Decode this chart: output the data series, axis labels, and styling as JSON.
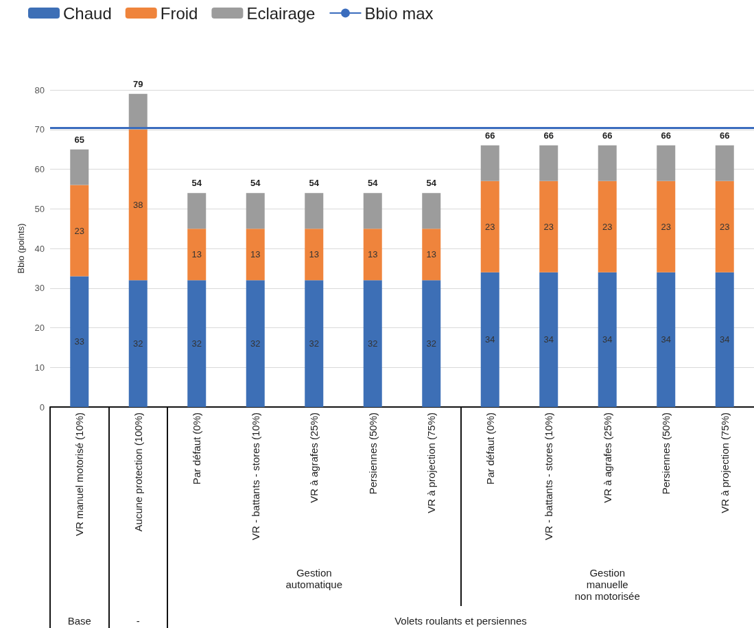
{
  "chart_data": {
    "type": "bar",
    "stacked": true,
    "ylabel": "Bbio (points)",
    "categories": [
      "VR manuel motorisé (10%)",
      "Aucune protection (100%)",
      "Par défaut (0%)",
      "VR - battants - stores (10%)",
      "VR à agrafes (25%)",
      "Persiennes (50%)",
      "VR à projection (75%)",
      "Par défaut (0%)",
      "VR - battants - stores (10%)",
      "VR à agrafes (25%)",
      "Persiennes (50%)",
      "VR à projection (75%)"
    ],
    "series": [
      {
        "name": "Chaud",
        "color": "#3d6fb6",
        "values": [
          33,
          32,
          32,
          32,
          32,
          32,
          32,
          34,
          34,
          34,
          34,
          34
        ],
        "value_labels": [
          "33",
          "32",
          "32",
          "32",
          "32",
          "32",
          "32",
          "34",
          "34",
          "34",
          "34",
          "34"
        ]
      },
      {
        "name": "Froid",
        "color": "#ef843c",
        "values": [
          23,
          38,
          13,
          13,
          13,
          13,
          13,
          23,
          23,
          23,
          23,
          23
        ],
        "value_labels": [
          "23",
          "38",
          "13",
          "13",
          "13",
          "13",
          "13",
          "23",
          "23",
          "23",
          "23",
          "23"
        ]
      },
      {
        "name": "Eclairage",
        "color": "#9c9c9c",
        "values": [
          9,
          9,
          9,
          9,
          9,
          9,
          9,
          9,
          9,
          9,
          9,
          9
        ]
      }
    ],
    "totals": [
      "65",
      "79",
      "54",
      "54",
      "54",
      "54",
      "54",
      "66",
      "66",
      "66",
      "66",
      "66"
    ],
    "ref_lines": [
      {
        "axis": "y",
        "value": 70.5,
        "label": "Bbio max",
        "color": "#3a6cbd"
      }
    ],
    "ylim": [
      0,
      80
    ],
    "yticks": [
      0,
      10,
      20,
      30,
      40,
      50,
      60,
      70,
      80
    ],
    "grid": "y",
    "legend": "top left",
    "annotations": [
      "Gestion\nautomatique",
      "Gestion\nmanuelle\nnon motorisée",
      "Base",
      "-",
      "Volets roulants et persiennes"
    ]
  }
}
